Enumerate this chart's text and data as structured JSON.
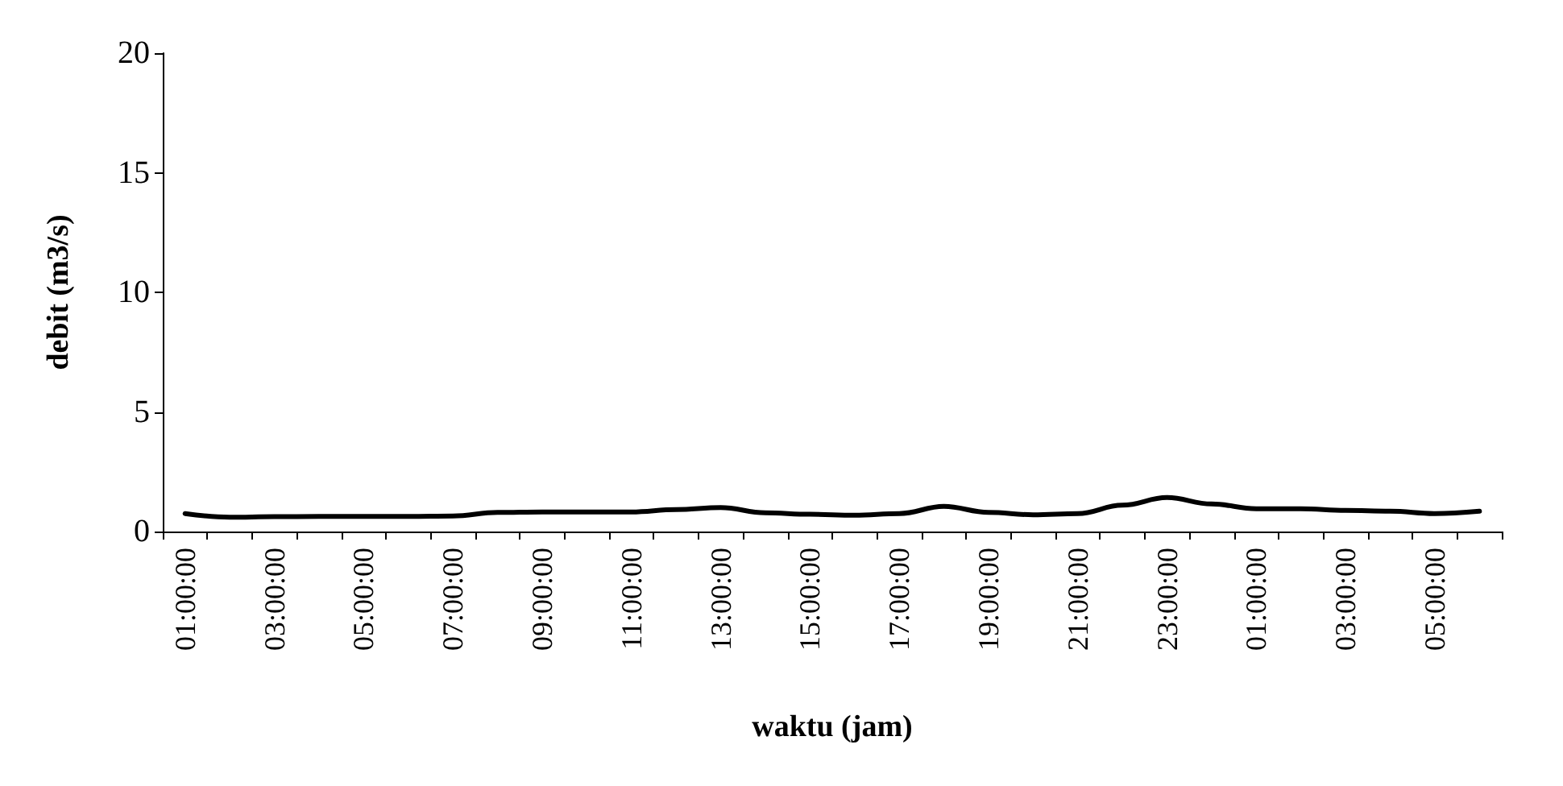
{
  "chart_data": {
    "type": "line",
    "xlabel": "waktu (jam)",
    "ylabel": "debit (m3/s)",
    "categories": [
      "01:00:00",
      null,
      "03:00:00",
      null,
      "05:00:00",
      null,
      "07:00:00",
      null,
      "09:00:00",
      null,
      "11:00:00",
      null,
      "13:00:00",
      null,
      "15:00:00",
      null,
      "17:00:00",
      null,
      "19:00:00",
      null,
      "21:00:00",
      null,
      "23:00:00",
      null,
      "01:00:00",
      null,
      "03:00:00",
      null,
      "05:00:00",
      null
    ],
    "series": [
      {
        "color": "#000000",
        "values": [
          0.75,
          0.6,
          0.62,
          0.63,
          0.63,
          0.63,
          0.65,
          0.8,
          0.82,
          0.82,
          0.82,
          0.92,
          1.0,
          0.78,
          0.72,
          0.68,
          0.75,
          1.05,
          0.8,
          0.7,
          0.75,
          1.1,
          1.42,
          1.15,
          0.95,
          0.95,
          0.88,
          0.85,
          0.75,
          0.85
        ]
      }
    ],
    "ylim": [
      0,
      20
    ],
    "yticks": [
      0,
      5,
      10,
      15,
      20
    ],
    "grid": false,
    "marker": "none",
    "line_style": "solid"
  }
}
